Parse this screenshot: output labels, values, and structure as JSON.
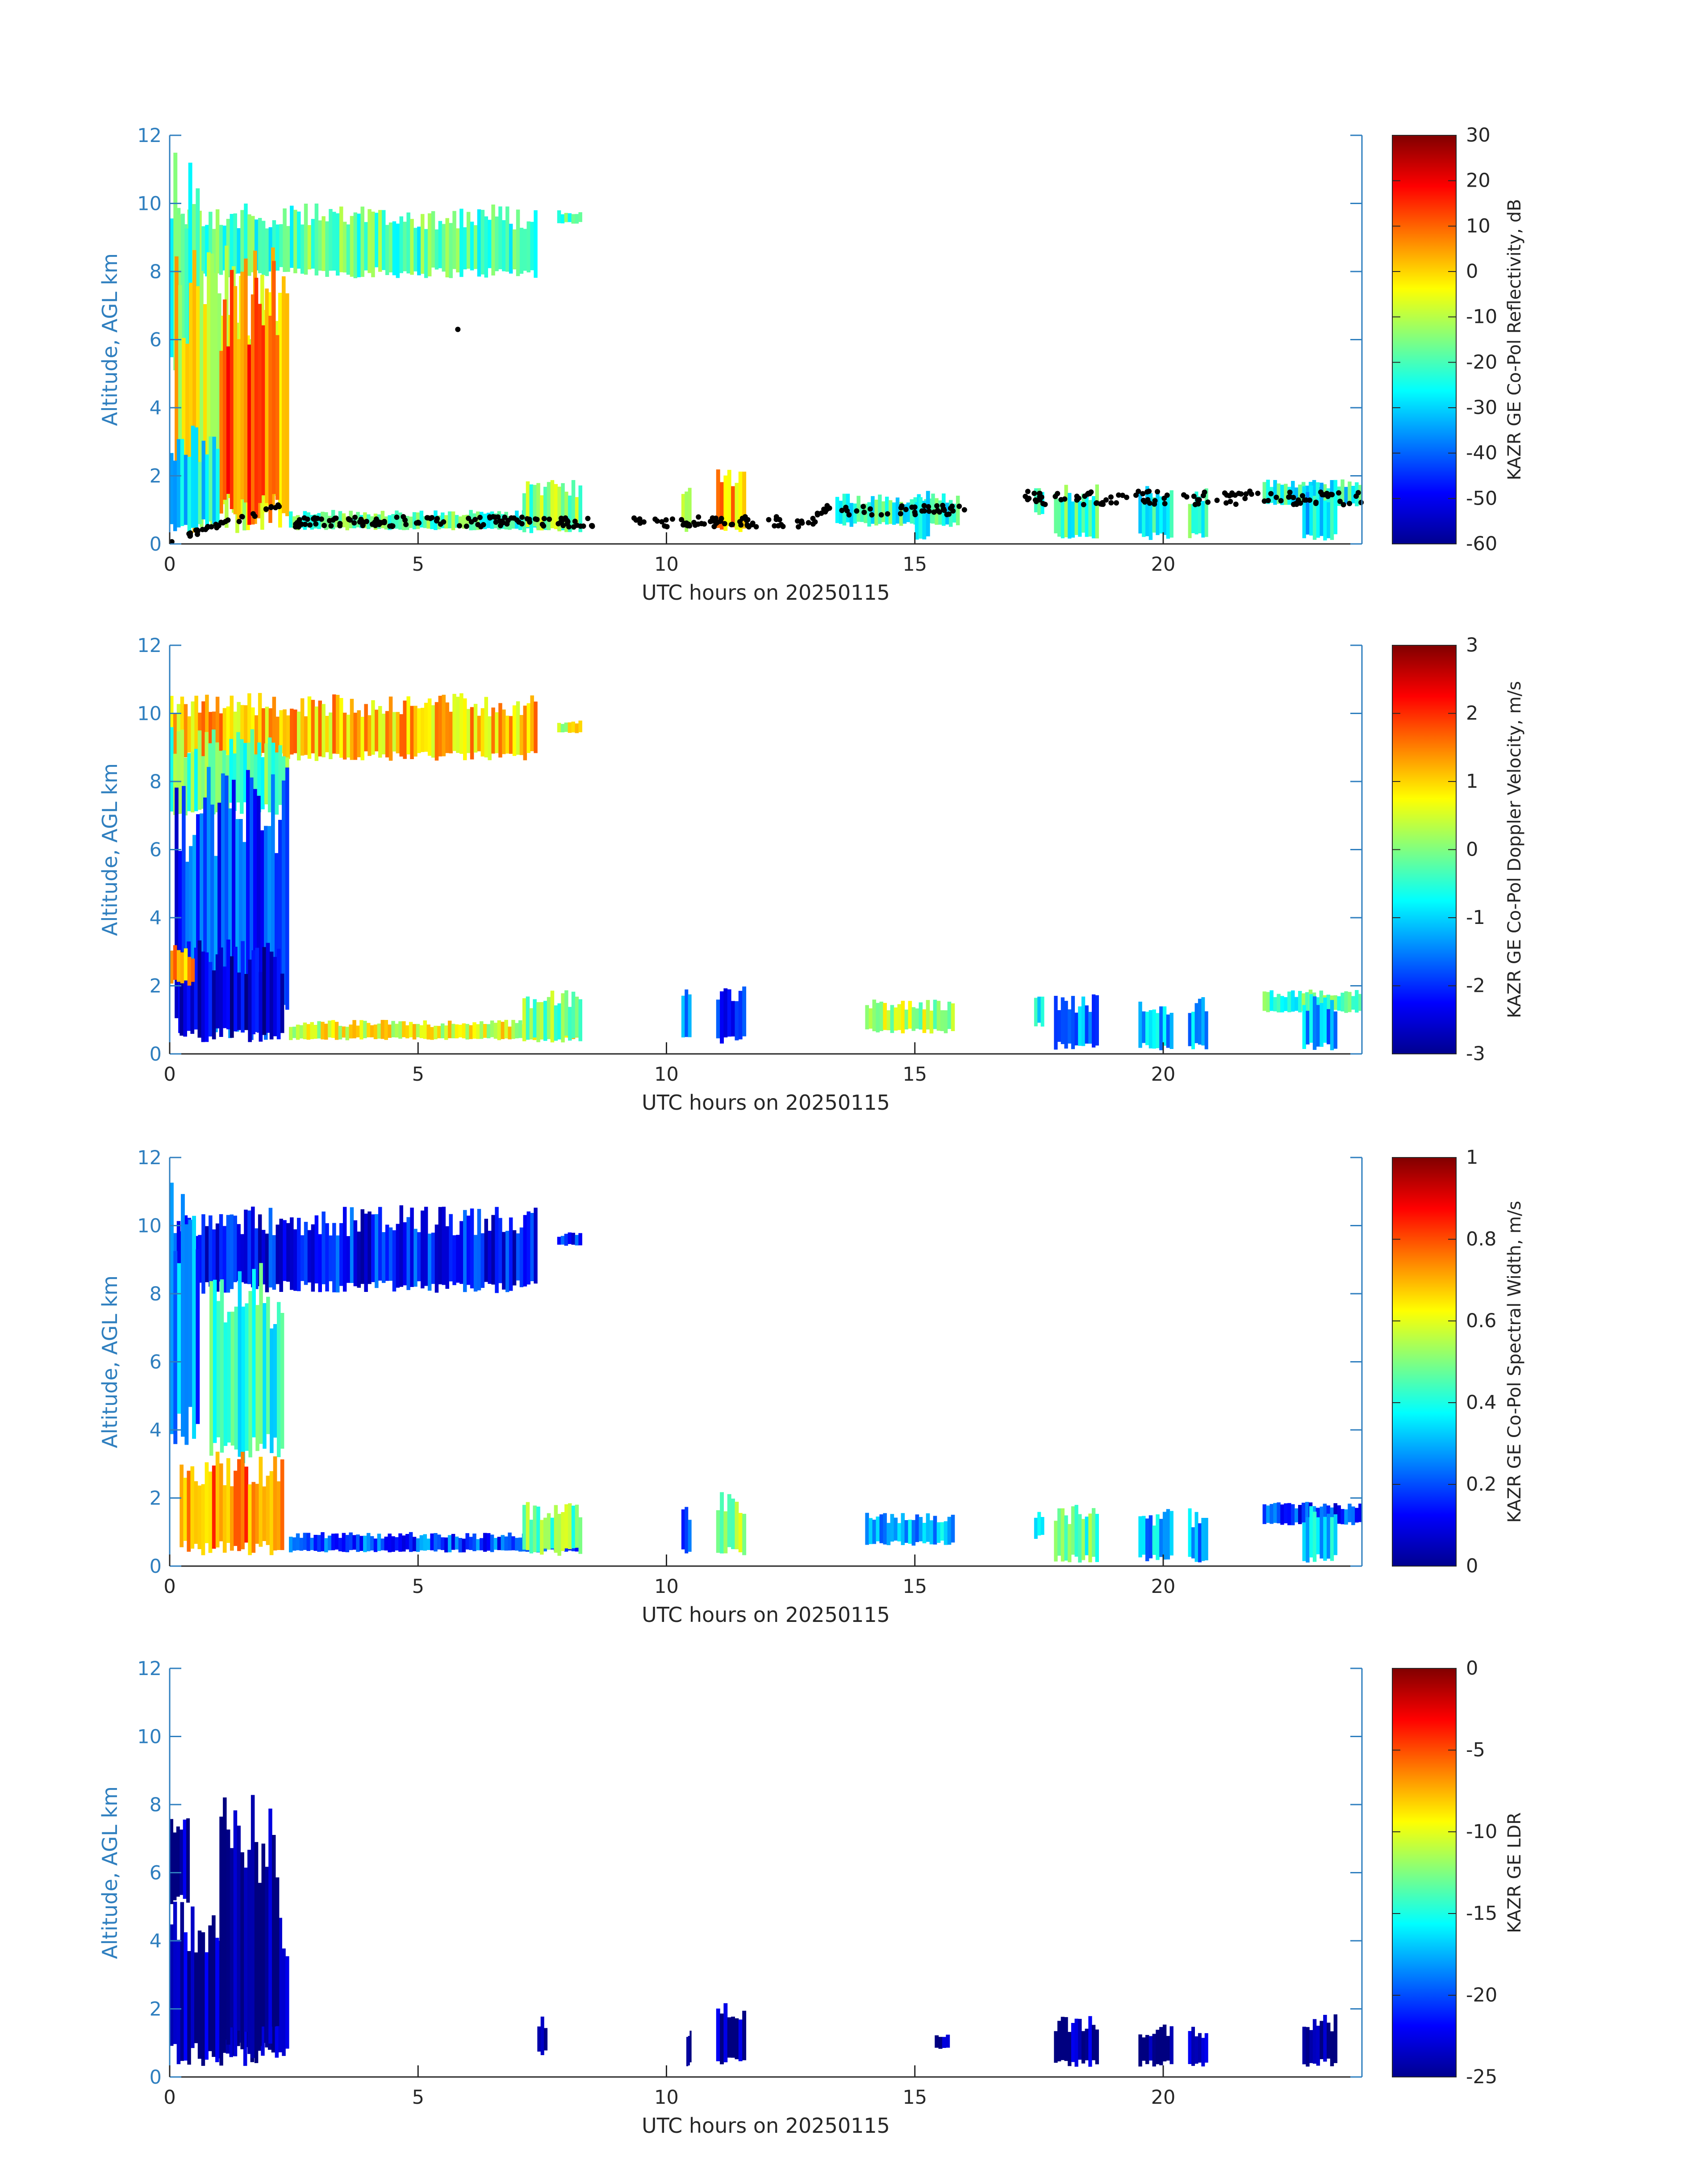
{
  "chart_data": [
    {
      "type": "heatmap",
      "variable": "KAZR GE Co-Pol Reflectivity, dB",
      "xlabel": "UTC hours on 20250115",
      "ylabel": "Altitude, AGL km",
      "xlim": [
        0,
        24
      ],
      "ylim": [
        0,
        12
      ],
      "xticks": [
        0,
        5,
        10,
        15,
        20
      ],
      "yticks": [
        0,
        2,
        4,
        6,
        8,
        10,
        12
      ],
      "clim": [
        -60,
        30
      ],
      "cticks": [
        -60,
        -50,
        -40,
        -30,
        -20,
        -10,
        0,
        10,
        20,
        30
      ],
      "colormap": "jet",
      "overlay": "black dots: cloud-base height"
    },
    {
      "type": "heatmap",
      "variable": "KAZR GE Co-Pol Doppler Velocity, m/s",
      "xlabel": "UTC hours on 20250115",
      "ylabel": "Altitude, AGL km",
      "xlim": [
        0,
        24
      ],
      "ylim": [
        0,
        12
      ],
      "xticks": [
        0,
        5,
        10,
        15,
        20
      ],
      "yticks": [
        0,
        2,
        4,
        6,
        8,
        10,
        12
      ],
      "clim": [
        -3,
        3
      ],
      "cticks": [
        -3,
        -2,
        -1,
        0,
        1,
        2,
        3
      ],
      "colormap": "jet"
    },
    {
      "type": "heatmap",
      "variable": "KAZR GE Co-Pol Spectral Width, m/s",
      "xlabel": "UTC hours on 20250115",
      "ylabel": "Altitude, AGL km",
      "xlim": [
        0,
        24
      ],
      "ylim": [
        0,
        12
      ],
      "xticks": [
        0,
        5,
        10,
        15,
        20
      ],
      "yticks": [
        0,
        2,
        4,
        6,
        8,
        10,
        12
      ],
      "clim": [
        0,
        1
      ],
      "cticks": [
        0,
        0.2,
        0.4,
        0.6,
        0.8,
        1
      ],
      "colormap": "jet"
    },
    {
      "type": "heatmap",
      "variable": "KAZR GE LDR",
      "xlabel": "UTC hours on 20250115",
      "ylabel": "Altitude, AGL km",
      "xlim": [
        0,
        24
      ],
      "ylim": [
        0,
        12
      ],
      "xticks": [
        0,
        5,
        10,
        15,
        20
      ],
      "yticks": [
        0,
        2,
        4,
        6,
        8,
        10,
        12
      ],
      "clim": [
        -25,
        0
      ],
      "cticks": [
        -25,
        -20,
        -15,
        -10,
        -5,
        0
      ],
      "colormap": "jet"
    }
  ],
  "colors": {
    "axis_blue": "#2f7fbf",
    "text_dark": "#262626",
    "cbh_dot": "#000000"
  }
}
